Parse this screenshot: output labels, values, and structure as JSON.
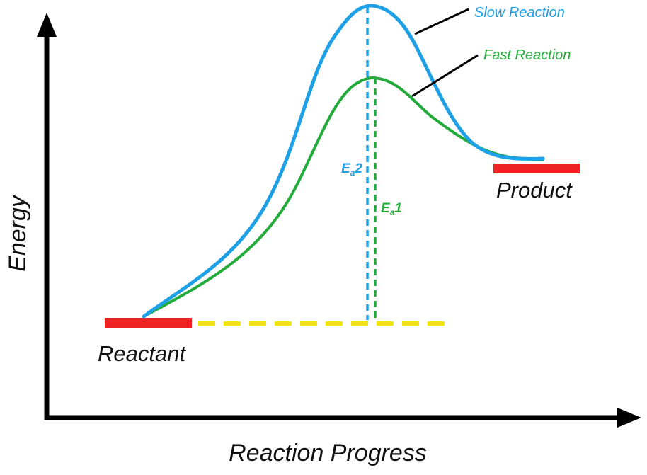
{
  "diagram": {
    "axes": {
      "y_label": "Energy",
      "x_label": "Reaction Progress"
    },
    "levels": {
      "reactant": "Reactant",
      "product": "Product"
    },
    "curves": {
      "slow": {
        "label": "Slow Reaction",
        "color": "#1ea0e6"
      },
      "fast": {
        "label": "Fast Reaction",
        "color": "#22aa3a"
      }
    },
    "activation_energy": {
      "slow": {
        "base": "E",
        "sub": "a",
        "num": "2"
      },
      "fast": {
        "base": "E",
        "sub": "a",
        "num": "1"
      }
    },
    "colors": {
      "axis": "#000000",
      "level_bar": "#ee2222",
      "reference_line": "#f3e11a",
      "leader_line": "#000000"
    }
  }
}
